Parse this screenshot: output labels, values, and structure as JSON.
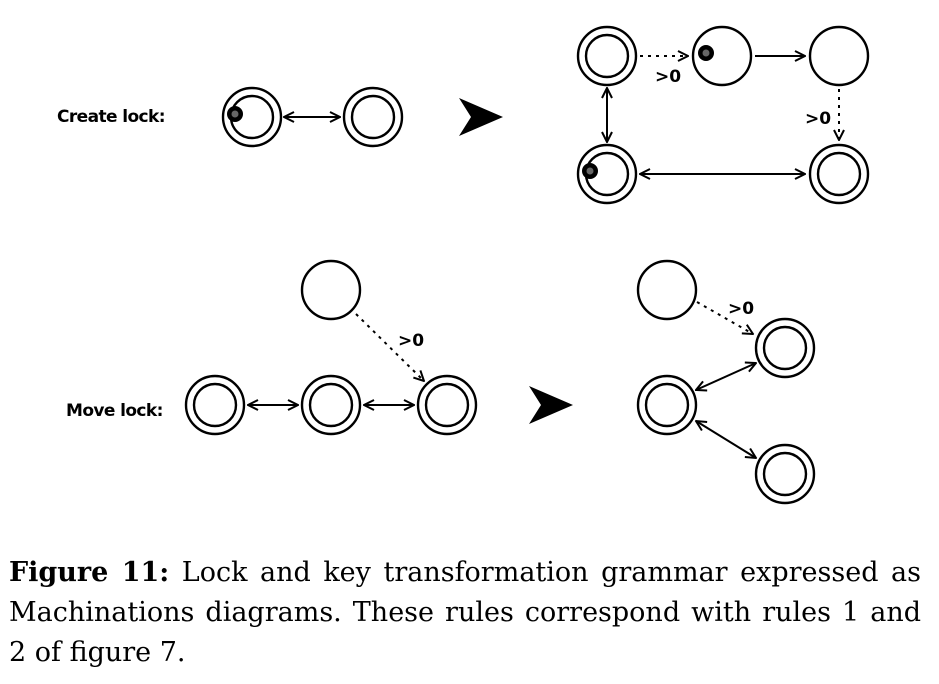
{
  "rules": [
    {
      "label": "Create lock:",
      "before_edges": [
        {
          "type": "bidirectional"
        }
      ],
      "after_edges": [
        {
          "type": "dashed",
          "label": ">0"
        },
        {
          "type": "solid"
        },
        {
          "type": "dashed",
          "label": ">0"
        },
        {
          "type": "bidirectional"
        },
        {
          "type": "bidirectional"
        }
      ]
    },
    {
      "label": "Move lock:",
      "before_edges": [
        {
          "type": "bidirectional"
        },
        {
          "type": "bidirectional"
        },
        {
          "type": "dashed",
          "label": ">0"
        }
      ],
      "after_edges": [
        {
          "type": "dashed",
          "label": ">0"
        },
        {
          "type": "bidirectional"
        },
        {
          "type": "bidirectional"
        }
      ]
    }
  ],
  "caption": {
    "figure_number": "Figure 11:",
    "text": "Lock and key transformation grammar expressed as Machinations diagrams. These rules correspond with rules 1 and 2 of figure 7."
  }
}
